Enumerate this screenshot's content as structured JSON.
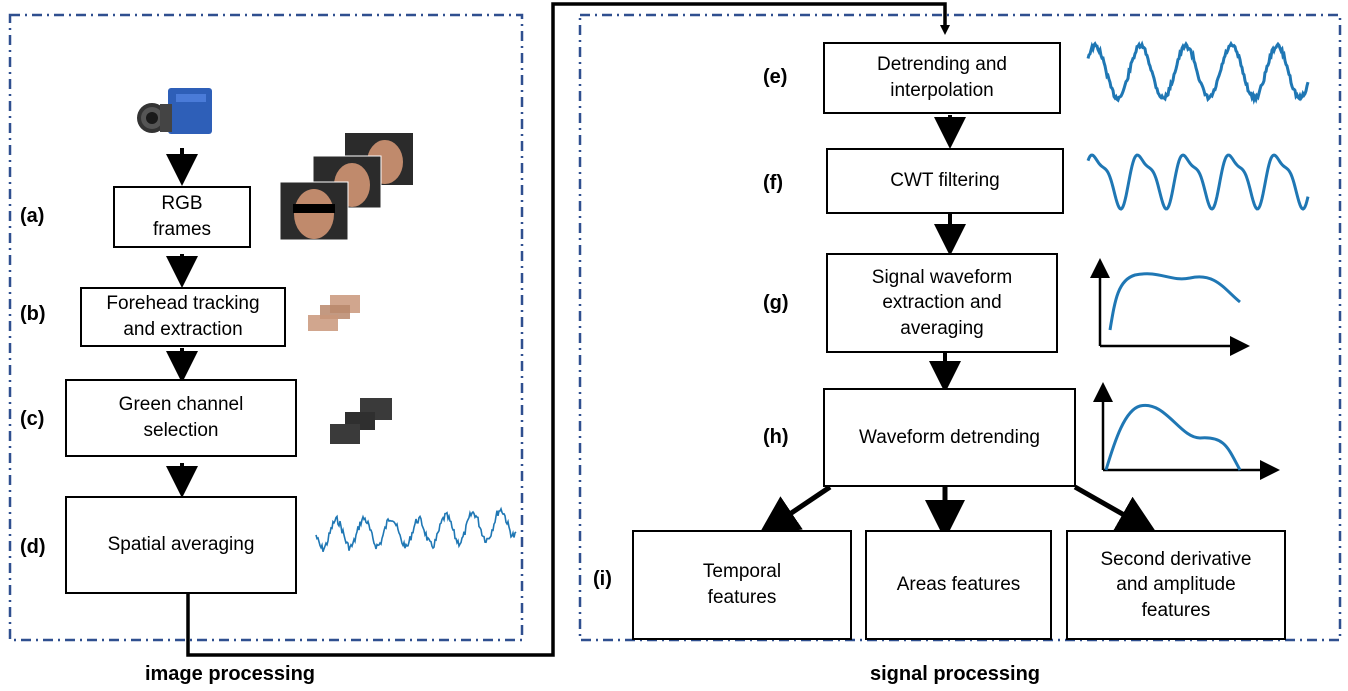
{
  "image_processing": {
    "caption": "image processing",
    "steps": [
      {
        "label": "(a)",
        "box": "RGB\nframes"
      },
      {
        "label": "(b)",
        "box": "Forehead tracking\nand extraction"
      },
      {
        "label": "(c)",
        "box": "Green channel\nselection"
      },
      {
        "label": "(d)",
        "box": "Spatial averaging"
      }
    ]
  },
  "signal_processing": {
    "caption": "signal processing",
    "steps": [
      {
        "label": "(e)",
        "box": "Detrending and\ninterpolation"
      },
      {
        "label": "(f)",
        "box": "CWT filtering"
      },
      {
        "label": "(g)",
        "box": "Signal waveform\nextraction and\naveraging"
      },
      {
        "label": "(h)",
        "box": "Waveform detrending"
      }
    ],
    "features_label": "(i)",
    "features": [
      "Temporal\nfeatures",
      "Areas features",
      "Second derivative\nand amplitude\nfeatures"
    ]
  },
  "colors": {
    "panel_border": "#2f4f8f",
    "signal": "#1f77b4",
    "camera": "#2e5fb8",
    "skin": "#c9967a",
    "gray_patch": "#3a3a3a"
  },
  "icons": [
    "camera-icon",
    "face-frames-icon",
    "forehead-patch-icon",
    "green-patch-icon"
  ]
}
